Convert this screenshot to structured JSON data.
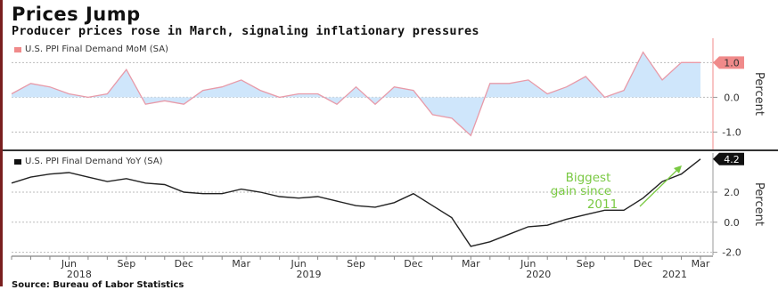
{
  "title": "Prices Jump",
  "subtitle": "Producer prices rose in March, signaling inflationary pressures",
  "source": "Source: Bureau of Labor Statistics",
  "colors": {
    "mom_fill": "#cfe6fb",
    "mom_line": "#e89aa8",
    "mom_badge": "#f08a8a",
    "yoy_line": "#222222",
    "yoy_badge": "#111111",
    "annotation": "#7ac943"
  },
  "chart_data": [
    {
      "type": "area",
      "legend": "U.S. PPI Final Demand MoM (SA)",
      "ylabel": "Percent",
      "ylim": [
        -1.5,
        1.7
      ],
      "yticks": [
        "1.0",
        "0.0",
        "-1.0"
      ],
      "ytick_values": [
        1.0,
        0.0,
        -1.0
      ],
      "grid": true,
      "last_value_label": "1.0",
      "x": [
        "2018-03",
        "2018-04",
        "2018-05",
        "2018-06",
        "2018-07",
        "2018-08",
        "2018-09",
        "2018-10",
        "2018-11",
        "2018-12",
        "2019-01",
        "2019-02",
        "2019-03",
        "2019-04",
        "2019-05",
        "2019-06",
        "2019-07",
        "2019-08",
        "2019-09",
        "2019-10",
        "2019-11",
        "2019-12",
        "2020-01",
        "2020-02",
        "2020-03",
        "2020-04",
        "2020-05",
        "2020-06",
        "2020-07",
        "2020-08",
        "2020-09",
        "2020-10",
        "2020-11",
        "2020-12",
        "2021-01",
        "2021-02",
        "2021-03"
      ],
      "values": [
        0.1,
        0.4,
        0.3,
        0.1,
        0.0,
        0.1,
        0.8,
        -0.2,
        -0.1,
        -0.2,
        0.2,
        0.3,
        0.5,
        0.2,
        0.0,
        0.1,
        0.1,
        -0.2,
        0.3,
        -0.2,
        0.3,
        0.2,
        -0.5,
        -0.6,
        -1.1,
        0.4,
        0.4,
        0.5,
        0.1,
        0.3,
        0.6,
        0.0,
        0.2,
        1.3,
        0.5,
        1.0,
        1.0
      ]
    },
    {
      "type": "line",
      "legend": "U.S. PPI Final Demand YoY (SA)",
      "ylabel": "Percent",
      "ylim": [
        -2.2,
        4.6
      ],
      "yticks": [
        "4.2",
        "2.0",
        "0.0",
        "-2.0"
      ],
      "ytick_values": [
        4.2,
        2.0,
        0.0,
        -2.0
      ],
      "grid": true,
      "last_value_label": "4.2",
      "annotation": [
        "Biggest",
        "gain since",
        "2011"
      ],
      "x": [
        "2018-03",
        "2018-04",
        "2018-05",
        "2018-06",
        "2018-07",
        "2018-08",
        "2018-09",
        "2018-10",
        "2018-11",
        "2018-12",
        "2019-01",
        "2019-02",
        "2019-03",
        "2019-04",
        "2019-05",
        "2019-06",
        "2019-07",
        "2019-08",
        "2019-09",
        "2019-10",
        "2019-11",
        "2019-12",
        "2020-01",
        "2020-02",
        "2020-03",
        "2020-04",
        "2020-05",
        "2020-06",
        "2020-07",
        "2020-08",
        "2020-09",
        "2020-10",
        "2020-11",
        "2020-12",
        "2021-01",
        "2021-02",
        "2021-03"
      ],
      "values": [
        2.6,
        3.0,
        3.2,
        3.3,
        3.0,
        2.7,
        2.9,
        2.6,
        2.5,
        2.0,
        1.9,
        1.9,
        2.2,
        2.0,
        1.7,
        1.6,
        1.7,
        1.4,
        1.1,
        1.0,
        1.3,
        1.9,
        1.1,
        0.3,
        -1.6,
        -1.3,
        -0.8,
        -0.3,
        -0.2,
        0.2,
        0.5,
        0.8,
        0.8,
        1.6,
        2.7,
        3.2,
        4.2
      ]
    }
  ],
  "x_axis": {
    "month_labels": [
      "Jun",
      "Sep",
      "Dec",
      "Mar",
      "Jun",
      "Sep",
      "Dec",
      "Mar",
      "Jun",
      "Sep",
      "Dec",
      "Mar"
    ],
    "year_labels": [
      "2018",
      "2019",
      "2020",
      "2021"
    ]
  }
}
